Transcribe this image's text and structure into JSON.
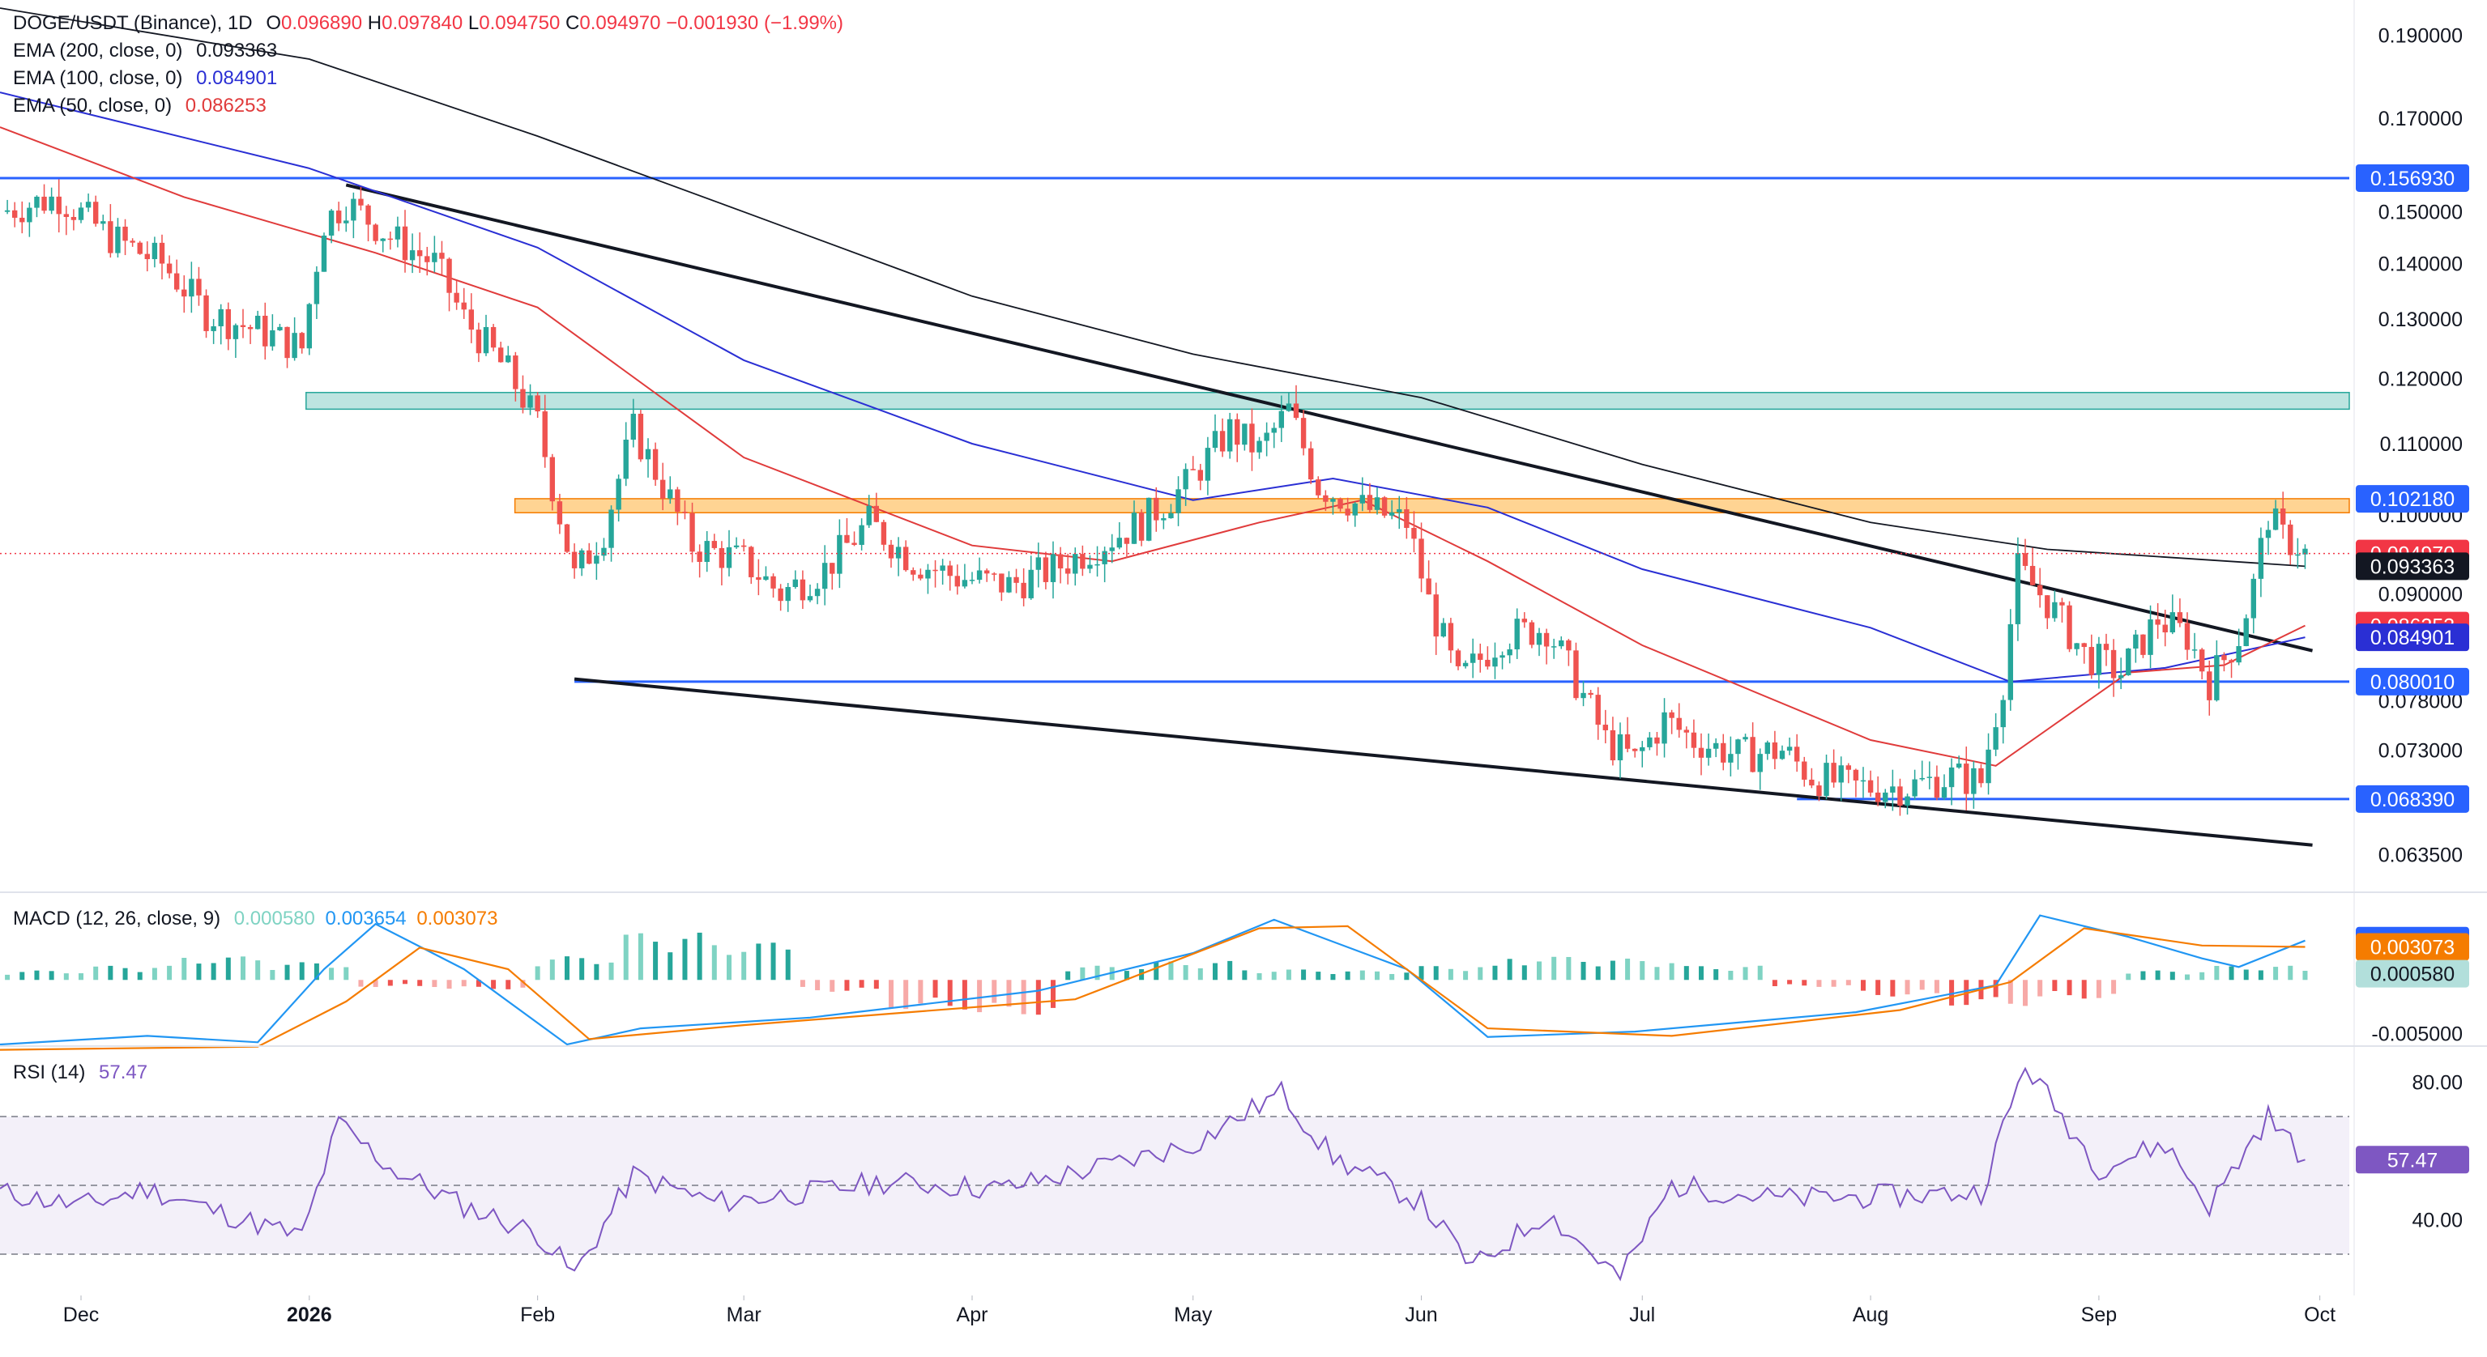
{
  "header": {
    "symbol": "DOGE/USDT (Binance), 1D",
    "o_label": "O",
    "o": "0.096890",
    "h_label": "H",
    "h": "0.097840",
    "l_label": "L",
    "l": "0.094750",
    "c_label": "C",
    "c": "0.094970",
    "change": "−0.001930 (−1.99%)"
  },
  "indicators": {
    "ema200": {
      "label": "EMA (200, close, 0)",
      "value": "0.093363",
      "color": "#131722"
    },
    "ema100": {
      "label": "EMA (100, close, 0)",
      "value": "0.084901",
      "color": "#2a2fd4"
    },
    "ema50": {
      "label": "EMA (50, close, 0)",
      "value": "0.086253",
      "color": "#e03b3b"
    },
    "macd": {
      "label": "MACD (12, 26, close, 9)",
      "hist": "0.000580",
      "macd": "0.003654",
      "signal": "0.003073",
      "hist_color": "#7fd3c3",
      "macd_color": "#2196f3",
      "signal_color": "#f57c00"
    },
    "rsi": {
      "label": "RSI (14)",
      "value": "57.47",
      "color": "#7e57c2"
    }
  },
  "price_axis": {
    "ticks": [
      "0.190000",
      "0.170000",
      "0.150000",
      "0.140000",
      "0.130000",
      "0.120000",
      "0.110000",
      "0.100000",
      "0.090000",
      "0.078000",
      "0.073000",
      "0.063500"
    ],
    "tick_values": [
      0.19,
      0.17,
      0.15,
      0.14,
      0.13,
      0.12,
      0.11,
      0.1,
      0.09,
      0.078,
      0.073,
      0.0635
    ]
  },
  "price_badges": [
    {
      "text": "0.156930",
      "value": 0.15693,
      "bg": "#2962ff",
      "fg": "#ffffff"
    },
    {
      "text": "0.102180",
      "value": 0.10218,
      "bg": "#2962ff",
      "fg": "#ffffff"
    },
    {
      "text": "0.094970",
      "value": 0.09497,
      "bg": "#f23645",
      "fg": "#ffffff"
    },
    {
      "text": "0.093363",
      "value": 0.093363,
      "bg": "#131722",
      "fg": "#ffffff"
    },
    {
      "text": "0.086253",
      "value": 0.086253,
      "bg": "#f23645",
      "fg": "#ffffff"
    },
    {
      "text": "0.084901",
      "value": 0.084901,
      "bg": "#2a2fd4",
      "fg": "#ffffff"
    },
    {
      "text": "0.080010",
      "value": 0.08001,
      "bg": "#2962ff",
      "fg": "#ffffff"
    },
    {
      "text": "0.068390",
      "value": 0.06839,
      "bg": "#2962ff",
      "fg": "#ffffff"
    }
  ],
  "macd_axis": {
    "ticks": [
      "-0.005000"
    ],
    "badges": [
      {
        "text": "0.003654",
        "value": 0.003654,
        "bg": "#2962ff",
        "fg": "#ffffff"
      },
      {
        "text": "0.003073",
        "value": 0.003073,
        "bg": "#f57c00",
        "fg": "#ffffff"
      },
      {
        "text": "0.000580",
        "value": 0.00058,
        "bg": "#b2dfdb",
        "fg": "#131722"
      }
    ]
  },
  "rsi_axis": {
    "ticks": [
      "80.00",
      "40.00"
    ],
    "badge": {
      "text": "57.47",
      "bg": "#7e57c2",
      "fg": "#ffffff"
    }
  },
  "time_axis": [
    "Dec",
    "2026",
    "Feb",
    "Mar",
    "Apr",
    "May",
    "Jun",
    "Jul",
    "Aug",
    "Sep",
    "Oct"
  ],
  "chart_data": {
    "type": "candlestick",
    "interval": "1D",
    "x_range": [
      "2025-11-20",
      "2026-10-05"
    ],
    "y_scale": "log",
    "ylim": [
      0.0605,
      0.197
    ],
    "months": [
      {
        "label": "Dec",
        "date": "2025-12-01"
      },
      {
        "label": "2026",
        "date": "2026-01-01"
      },
      {
        "label": "Feb",
        "date": "2026-02-01"
      },
      {
        "label": "Mar",
        "date": "2026-03-01"
      },
      {
        "label": "Apr",
        "date": "2026-04-01"
      },
      {
        "label": "May",
        "date": "2026-05-01"
      },
      {
        "label": "Jun",
        "date": "2026-06-01"
      },
      {
        "label": "Jul",
        "date": "2026-07-01"
      },
      {
        "label": "Aug",
        "date": "2026-08-01"
      },
      {
        "label": "Sep",
        "date": "2026-09-01"
      },
      {
        "label": "Oct",
        "date": "2026-10-01"
      }
    ],
    "close_path": [
      [
        "2025-11-20",
        0.15
      ],
      [
        "2025-11-28",
        0.153
      ],
      [
        "2025-12-05",
        0.145
      ],
      [
        "2025-12-12",
        0.14
      ],
      [
        "2025-12-18",
        0.131
      ],
      [
        "2025-12-25",
        0.128
      ],
      [
        "2025-12-31",
        0.125
      ],
      [
        "2026-01-03",
        0.148
      ],
      [
        "2026-01-06",
        0.152
      ],
      [
        "2026-01-12",
        0.145
      ],
      [
        "2026-01-18",
        0.14
      ],
      [
        "2026-01-22",
        0.13
      ],
      [
        "2026-01-28",
        0.121
      ],
      [
        "2026-02-01",
        0.113
      ],
      [
        "2026-02-03",
        0.104
      ],
      [
        "2026-02-06",
        0.092
      ],
      [
        "2026-02-10",
        0.098
      ],
      [
        "2026-02-14",
        0.112
      ],
      [
        "2026-02-18",
        0.104
      ],
      [
        "2026-02-22",
        0.096
      ],
      [
        "2026-03-01",
        0.094
      ],
      [
        "2026-03-06",
        0.09
      ],
      [
        "2026-03-12",
        0.093
      ],
      [
        "2026-03-18",
        0.099
      ],
      [
        "2026-03-24",
        0.094
      ],
      [
        "2026-03-30",
        0.092
      ],
      [
        "2026-04-06",
        0.091
      ],
      [
        "2026-04-12",
        0.093
      ],
      [
        "2026-04-18",
        0.096
      ],
      [
        "2026-04-24",
        0.099
      ],
      [
        "2026-04-30",
        0.104
      ],
      [
        "2026-05-06",
        0.112
      ],
      [
        "2026-05-10",
        0.109
      ],
      [
        "2026-05-14",
        0.115
      ],
      [
        "2026-05-18",
        0.104
      ],
      [
        "2026-05-24",
        0.101
      ],
      [
        "2026-05-30",
        0.099
      ],
      [
        "2026-06-02",
        0.089
      ],
      [
        "2026-06-06",
        0.08
      ],
      [
        "2026-06-12",
        0.085
      ],
      [
        "2026-06-18",
        0.086
      ],
      [
        "2026-06-22",
        0.08
      ],
      [
        "2026-06-26",
        0.074
      ],
      [
        "2026-06-30",
        0.072
      ],
      [
        "2026-07-04",
        0.076
      ],
      [
        "2026-07-08",
        0.074
      ],
      [
        "2026-07-14",
        0.0725
      ],
      [
        "2026-07-20",
        0.073
      ],
      [
        "2026-07-24",
        0.0705
      ],
      [
        "2026-07-30",
        0.0695
      ],
      [
        "2026-08-06",
        0.0695
      ],
      [
        "2026-08-12",
        0.0705
      ],
      [
        "2026-08-16",
        0.07
      ],
      [
        "2026-08-19",
        0.08
      ],
      [
        "2026-08-21",
        0.093
      ],
      [
        "2026-08-25",
        0.089
      ],
      [
        "2026-08-30",
        0.083
      ],
      [
        "2026-09-04",
        0.081
      ],
      [
        "2026-09-09",
        0.087
      ],
      [
        "2026-09-13",
        0.085
      ],
      [
        "2026-09-16",
        0.08
      ],
      [
        "2026-09-20",
        0.085
      ],
      [
        "2026-09-22",
        0.091
      ],
      [
        "2026-09-24",
        0.1
      ],
      [
        "2026-09-26",
        0.097
      ],
      [
        "2026-09-28",
        0.096
      ],
      [
        "2026-09-29",
        0.09497
      ]
    ],
    "ema200_path": [
      [
        "2025-11-20",
        0.197
      ],
      [
        "2026-01-01",
        0.184
      ],
      [
        "2026-02-01",
        0.166
      ],
      [
        "2026-03-01",
        0.15
      ],
      [
        "2026-04-01",
        0.134
      ],
      [
        "2026-05-01",
        0.124
      ],
      [
        "2026-06-01",
        0.117
      ],
      [
        "2026-07-01",
        0.107
      ],
      [
        "2026-08-01",
        0.099
      ],
      [
        "2026-08-25",
        0.0955
      ],
      [
        "2026-09-29",
        0.093363
      ]
    ],
    "ema100_path": [
      [
        "2025-11-20",
        0.176
      ],
      [
        "2026-01-01",
        0.159
      ],
      [
        "2026-02-01",
        0.143
      ],
      [
        "2026-03-01",
        0.123
      ],
      [
        "2026-04-01",
        0.11
      ],
      [
        "2026-05-01",
        0.102
      ],
      [
        "2026-05-20",
        0.105
      ],
      [
        "2026-06-10",
        0.101
      ],
      [
        "2026-07-01",
        0.093
      ],
      [
        "2026-08-01",
        0.086
      ],
      [
        "2026-08-20",
        0.08
      ],
      [
        "2026-09-10",
        0.0815
      ],
      [
        "2026-09-29",
        0.084901
      ]
    ],
    "ema50_path": [
      [
        "2025-11-20",
        0.168
      ],
      [
        "2025-12-15",
        0.153
      ],
      [
        "2026-01-10",
        0.142
      ],
      [
        "2026-02-01",
        0.132
      ],
      [
        "2026-03-01",
        0.108
      ],
      [
        "2026-04-01",
        0.096
      ],
      [
        "2026-04-20",
        0.094
      ],
      [
        "2026-05-10",
        0.099
      ],
      [
        "2026-05-24",
        0.102
      ],
      [
        "2026-06-10",
        0.094
      ],
      [
        "2026-07-01",
        0.084
      ],
      [
        "2026-08-01",
        0.074
      ],
      [
        "2026-08-18",
        0.0715
      ],
      [
        "2026-09-05",
        0.081
      ],
      [
        "2026-09-18",
        0.0818
      ],
      [
        "2026-09-29",
        0.086253
      ]
    ],
    "horizontal_levels": [
      0.15693,
      0.08001,
      0.06839
    ],
    "zones": [
      {
        "from": "2026-01-01",
        "low": 0.1152,
        "high": 0.1178,
        "color": "teal"
      },
      {
        "from": "2026-02-01",
        "low": 0.1003,
        "high": 0.1022,
        "color": "orange"
      }
    ],
    "trendlines": [
      {
        "from": [
          "2026-01-06",
          0.1555
        ],
        "to": [
          "2026-09-30",
          0.0834
        ]
      },
      {
        "from": [
          "2026-02-06",
          0.0803
        ],
        "to": [
          "2026-09-30",
          0.0643
        ]
      }
    ],
    "current_price": 0.09497,
    "macd_panel": {
      "ylim": [
        -0.006,
        0.008
      ],
      "macd_path": [
        [
          "2025-11-20",
          -0.006
        ],
        [
          "2025-12-10",
          -0.0052
        ],
        [
          "2025-12-25",
          -0.0058
        ],
        [
          "2026-01-03",
          0.001
        ],
        [
          "2026-01-10",
          0.0052
        ],
        [
          "2026-01-22",
          0.001
        ],
        [
          "2026-02-05",
          -0.006
        ],
        [
          "2026-02-15",
          -0.0045
        ],
        [
          "2026-03-10",
          -0.0035
        ],
        [
          "2026-04-10",
          -0.001
        ],
        [
          "2026-05-01",
          0.0025
        ],
        [
          "2026-05-12",
          0.0056
        ],
        [
          "2026-05-30",
          0.001
        ],
        [
          "2026-06-10",
          -0.0053
        ],
        [
          "2026-06-30",
          -0.0048
        ],
        [
          "2026-07-30",
          -0.003
        ],
        [
          "2026-08-18",
          -0.0005
        ],
        [
          "2026-08-24",
          0.006
        ],
        [
          "2026-09-05",
          0.004
        ],
        [
          "2026-09-15",
          0.002
        ],
        [
          "2026-09-20",
          0.0012
        ],
        [
          "2026-09-29",
          0.003654
        ]
      ],
      "signal_path": [
        [
          "2025-11-20",
          -0.0065
        ],
        [
          "2025-12-25",
          -0.0062
        ],
        [
          "2026-01-06",
          -0.002
        ],
        [
          "2026-01-16",
          0.003
        ],
        [
          "2026-01-28",
          0.001
        ],
        [
          "2026-02-08",
          -0.0055
        ],
        [
          "2026-03-01",
          -0.0042
        ],
        [
          "2026-04-15",
          -0.0018
        ],
        [
          "2026-05-10",
          0.0048
        ],
        [
          "2026-05-22",
          0.005
        ],
        [
          "2026-06-10",
          -0.0045
        ],
        [
          "2026-07-05",
          -0.0052
        ],
        [
          "2026-08-05",
          -0.0028
        ],
        [
          "2026-08-20",
          -0.0002
        ],
        [
          "2026-08-30",
          0.0048
        ],
        [
          "2026-09-15",
          0.0032
        ],
        [
          "2026-09-29",
          0.003073
        ]
      ],
      "hist_sample": [
        0.0008,
        0.0012,
        0.002,
        0.0015,
        -0.0006,
        -0.0008,
        0.002,
        0.004,
        0.0032,
        -0.001,
        -0.0025,
        -0.003,
        0.0012,
        0.0016,
        0.0009,
        0.0008,
        0.0012,
        0.002,
        0.0018,
        0.0012,
        -0.0006,
        -0.0014,
        -0.0022,
        -0.0016,
        0.0008,
        0.0012,
        0.0009,
        0.0006,
        0.002,
        0.0032,
        0.0028,
        -0.001,
        -0.0012,
        -0.0014,
        0.00058
      ]
    },
    "rsi_panel": {
      "ylim": [
        18,
        90
      ],
      "levels": [
        70,
        50,
        30
      ],
      "path": [
        [
          "2025-11-20",
          48
        ],
        [
          "2025-12-01",
          44
        ],
        [
          "2025-12-10",
          49
        ],
        [
          "2025-12-20",
          42
        ],
        [
          "2025-12-31",
          35
        ],
        [
          "2026-01-05",
          68
        ],
        [
          "2026-01-12",
          55
        ],
        [
          "2026-01-22",
          44
        ],
        [
          "2026-02-01",
          36
        ],
        [
          "2026-02-06",
          24
        ],
        [
          "2026-02-14",
          53
        ],
        [
          "2026-02-25",
          45
        ],
        [
          "2026-03-10",
          48
        ],
        [
          "2026-03-20",
          51
        ],
        [
          "2026-04-05",
          49
        ],
        [
          "2026-04-20",
          56
        ],
        [
          "2026-05-01",
          62
        ],
        [
          "2026-05-13",
          77
        ],
        [
          "2026-05-20",
          58
        ],
        [
          "2026-06-01",
          45
        ],
        [
          "2026-06-08",
          26
        ],
        [
          "2026-06-18",
          42
        ],
        [
          "2026-06-28",
          23
        ],
        [
          "2026-07-05",
          50
        ],
        [
          "2026-07-20",
          46
        ],
        [
          "2026-08-05",
          47
        ],
        [
          "2026-08-16",
          48
        ],
        [
          "2026-08-22",
          85
        ],
        [
          "2026-09-01",
          55
        ],
        [
          "2026-09-10",
          62
        ],
        [
          "2026-09-16",
          44
        ],
        [
          "2026-09-24",
          70
        ],
        [
          "2026-09-29",
          57.47
        ]
      ]
    }
  }
}
